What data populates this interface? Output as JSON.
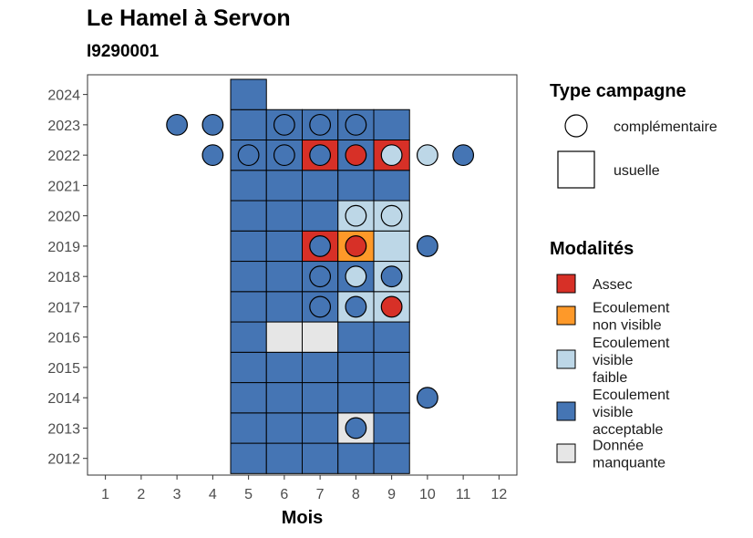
{
  "title": "Le Hamel à Servon",
  "subtitle": "I9290001",
  "colors": {
    "Assec": "#d73027",
    "Ecoulement non visible": "#fe9929",
    "Ecoulement visible faible": "#bdd7e7",
    "Ecoulement visible acceptable": "#4575b4",
    "Donnée manquante": "#e6e6e6"
  },
  "chart_data": {
    "type": "heatmap",
    "xlabel": "Mois",
    "ylabel": "",
    "x_ticks": [
      1,
      2,
      3,
      4,
      5,
      6,
      7,
      8,
      9,
      10,
      11,
      12
    ],
    "y_ticks": [
      2012,
      2013,
      2014,
      2015,
      2016,
      2017,
      2018,
      2019,
      2020,
      2021,
      2022,
      2023,
      2024
    ],
    "xlim": [
      0.5,
      12.5
    ],
    "ylim": [
      2011.45,
      2024.65
    ],
    "legend_type": {
      "title": "Type campagne",
      "items": [
        {
          "label": "complémentaire",
          "shape": "circle"
        },
        {
          "label": "usuelle",
          "shape": "square"
        }
      ]
    },
    "legend_modalites": {
      "title": "Modalités",
      "items": [
        {
          "label": [
            "Assec"
          ],
          "key": "Assec"
        },
        {
          "label": [
            "Ecoulement",
            "non visible"
          ],
          "key": "Ecoulement non visible"
        },
        {
          "label": [
            "Ecoulement",
            "visible",
            "faible"
          ],
          "key": "Ecoulement visible faible"
        },
        {
          "label": [
            "Ecoulement",
            "visible",
            "acceptable"
          ],
          "key": "Ecoulement visible acceptable"
        },
        {
          "label": [
            "Donnée",
            "manquante"
          ],
          "key": "Donnée manquante"
        }
      ]
    },
    "usuelle": [
      {
        "year": 2012,
        "month": 5,
        "modalite": "Ecoulement visible acceptable"
      },
      {
        "year": 2012,
        "month": 6,
        "modalite": "Ecoulement visible acceptable"
      },
      {
        "year": 2012,
        "month": 7,
        "modalite": "Ecoulement visible acceptable"
      },
      {
        "year": 2012,
        "month": 8,
        "modalite": "Ecoulement visible acceptable"
      },
      {
        "year": 2012,
        "month": 9,
        "modalite": "Ecoulement visible acceptable"
      },
      {
        "year": 2013,
        "month": 5,
        "modalite": "Ecoulement visible acceptable"
      },
      {
        "year": 2013,
        "month": 6,
        "modalite": "Ecoulement visible acceptable"
      },
      {
        "year": 2013,
        "month": 7,
        "modalite": "Ecoulement visible acceptable"
      },
      {
        "year": 2013,
        "month": 8,
        "modalite": "Donnée manquante"
      },
      {
        "year": 2013,
        "month": 9,
        "modalite": "Ecoulement visible acceptable"
      },
      {
        "year": 2014,
        "month": 5,
        "modalite": "Ecoulement visible acceptable"
      },
      {
        "year": 2014,
        "month": 6,
        "modalite": "Ecoulement visible acceptable"
      },
      {
        "year": 2014,
        "month": 7,
        "modalite": "Ecoulement visible acceptable"
      },
      {
        "year": 2014,
        "month": 8,
        "modalite": "Ecoulement visible acceptable"
      },
      {
        "year": 2014,
        "month": 9,
        "modalite": "Ecoulement visible acceptable"
      },
      {
        "year": 2015,
        "month": 5,
        "modalite": "Ecoulement visible acceptable"
      },
      {
        "year": 2015,
        "month": 6,
        "modalite": "Ecoulement visible acceptable"
      },
      {
        "year": 2015,
        "month": 7,
        "modalite": "Ecoulement visible acceptable"
      },
      {
        "year": 2015,
        "month": 8,
        "modalite": "Ecoulement visible acceptable"
      },
      {
        "year": 2015,
        "month": 9,
        "modalite": "Ecoulement visible acceptable"
      },
      {
        "year": 2016,
        "month": 5,
        "modalite": "Ecoulement visible acceptable"
      },
      {
        "year": 2016,
        "month": 6,
        "modalite": "Donnée manquante"
      },
      {
        "year": 2016,
        "month": 7,
        "modalite": "Donnée manquante"
      },
      {
        "year": 2016,
        "month": 8,
        "modalite": "Ecoulement visible acceptable"
      },
      {
        "year": 2016,
        "month": 9,
        "modalite": "Ecoulement visible acceptable"
      },
      {
        "year": 2017,
        "month": 5,
        "modalite": "Ecoulement visible acceptable"
      },
      {
        "year": 2017,
        "month": 6,
        "modalite": "Ecoulement visible acceptable"
      },
      {
        "year": 2017,
        "month": 7,
        "modalite": "Ecoulement visible acceptable"
      },
      {
        "year": 2017,
        "month": 8,
        "modalite": "Ecoulement visible faible"
      },
      {
        "year": 2017,
        "month": 9,
        "modalite": "Ecoulement visible faible"
      },
      {
        "year": 2018,
        "month": 5,
        "modalite": "Ecoulement visible acceptable"
      },
      {
        "year": 2018,
        "month": 6,
        "modalite": "Ecoulement visible acceptable"
      },
      {
        "year": 2018,
        "month": 7,
        "modalite": "Ecoulement visible acceptable"
      },
      {
        "year": 2018,
        "month": 8,
        "modalite": "Ecoulement visible acceptable"
      },
      {
        "year": 2018,
        "month": 9,
        "modalite": "Ecoulement visible faible"
      },
      {
        "year": 2019,
        "month": 5,
        "modalite": "Ecoulement visible acceptable"
      },
      {
        "year": 2019,
        "month": 6,
        "modalite": "Ecoulement visible acceptable"
      },
      {
        "year": 2019,
        "month": 7,
        "modalite": "Assec"
      },
      {
        "year": 2019,
        "month": 8,
        "modalite": "Ecoulement non visible"
      },
      {
        "year": 2019,
        "month": 9,
        "modalite": "Ecoulement visible faible"
      },
      {
        "year": 2020,
        "month": 5,
        "modalite": "Ecoulement visible acceptable"
      },
      {
        "year": 2020,
        "month": 6,
        "modalite": "Ecoulement visible acceptable"
      },
      {
        "year": 2020,
        "month": 7,
        "modalite": "Ecoulement visible acceptable"
      },
      {
        "year": 2020,
        "month": 8,
        "modalite": "Ecoulement visible faible"
      },
      {
        "year": 2020,
        "month": 9,
        "modalite": "Ecoulement visible faible"
      },
      {
        "year": 2021,
        "month": 5,
        "modalite": "Ecoulement visible acceptable"
      },
      {
        "year": 2021,
        "month": 6,
        "modalite": "Ecoulement visible acceptable"
      },
      {
        "year": 2021,
        "month": 7,
        "modalite": "Ecoulement visible acceptable"
      },
      {
        "year": 2021,
        "month": 8,
        "modalite": "Ecoulement visible acceptable"
      },
      {
        "year": 2021,
        "month": 9,
        "modalite": "Ecoulement visible acceptable"
      },
      {
        "year": 2022,
        "month": 5,
        "modalite": "Ecoulement visible acceptable"
      },
      {
        "year": 2022,
        "month": 6,
        "modalite": "Ecoulement visible acceptable"
      },
      {
        "year": 2022,
        "month": 7,
        "modalite": "Assec"
      },
      {
        "year": 2022,
        "month": 8,
        "modalite": "Ecoulement visible acceptable"
      },
      {
        "year": 2022,
        "month": 9,
        "modalite": "Assec"
      },
      {
        "year": 2023,
        "month": 5,
        "modalite": "Ecoulement visible acceptable"
      },
      {
        "year": 2023,
        "month": 6,
        "modalite": "Ecoulement visible acceptable"
      },
      {
        "year": 2023,
        "month": 7,
        "modalite": "Ecoulement visible acceptable"
      },
      {
        "year": 2023,
        "month": 8,
        "modalite": "Ecoulement visible acceptable"
      },
      {
        "year": 2023,
        "month": 9,
        "modalite": "Ecoulement visible acceptable"
      },
      {
        "year": 2024,
        "month": 5,
        "modalite": "Ecoulement visible acceptable"
      }
    ],
    "complementaire": [
      {
        "year": 2013,
        "month": 8,
        "modalite": "Ecoulement visible acceptable"
      },
      {
        "year": 2014,
        "month": 10,
        "modalite": "Ecoulement visible acceptable"
      },
      {
        "year": 2017,
        "month": 7,
        "modalite": "Ecoulement visible acceptable"
      },
      {
        "year": 2017,
        "month": 8,
        "modalite": "Ecoulement visible acceptable"
      },
      {
        "year": 2017,
        "month": 9,
        "modalite": "Assec"
      },
      {
        "year": 2018,
        "month": 7,
        "modalite": "Ecoulement visible acceptable"
      },
      {
        "year": 2018,
        "month": 8,
        "modalite": "Ecoulement visible faible"
      },
      {
        "year": 2018,
        "month": 9,
        "modalite": "Ecoulement visible acceptable"
      },
      {
        "year": 2019,
        "month": 7,
        "modalite": "Ecoulement visible acceptable"
      },
      {
        "year": 2019,
        "month": 8,
        "modalite": "Assec"
      },
      {
        "year": 2019,
        "month": 10,
        "modalite": "Ecoulement visible acceptable"
      },
      {
        "year": 2020,
        "month": 8,
        "modalite": "Ecoulement visible faible"
      },
      {
        "year": 2020,
        "month": 9,
        "modalite": "Ecoulement visible faible"
      },
      {
        "year": 2022,
        "month": 4,
        "modalite": "Ecoulement visible acceptable"
      },
      {
        "year": 2022,
        "month": 5,
        "modalite": "Ecoulement visible acceptable"
      },
      {
        "year": 2022,
        "month": 6,
        "modalite": "Ecoulement visible acceptable"
      },
      {
        "year": 2022,
        "month": 7,
        "modalite": "Ecoulement visible acceptable"
      },
      {
        "year": 2022,
        "month": 8,
        "modalite": "Assec"
      },
      {
        "year": 2022,
        "month": 9,
        "modalite": "Ecoulement visible faible"
      },
      {
        "year": 2022,
        "month": 10,
        "modalite": "Ecoulement visible faible"
      },
      {
        "year": 2022,
        "month": 11,
        "modalite": "Ecoulement visible acceptable"
      },
      {
        "year": 2023,
        "month": 3,
        "modalite": "Ecoulement visible acceptable"
      },
      {
        "year": 2023,
        "month": 4,
        "modalite": "Ecoulement visible acceptable"
      },
      {
        "year": 2023,
        "month": 6,
        "modalite": "Ecoulement visible acceptable"
      },
      {
        "year": 2023,
        "month": 7,
        "modalite": "Ecoulement visible acceptable"
      },
      {
        "year": 2023,
        "month": 8,
        "modalite": "Ecoulement visible acceptable"
      }
    ]
  }
}
